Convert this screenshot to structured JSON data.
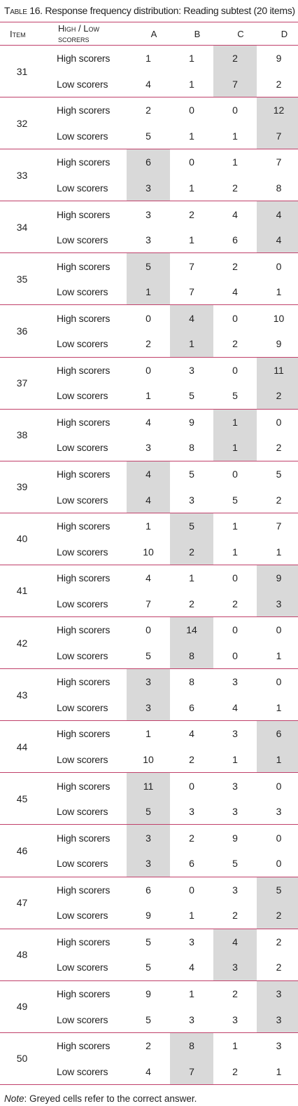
{
  "caption": {
    "prefix": "Table 16.",
    "text": "Response frequency distribution: Reading subtest (20 items)"
  },
  "header": {
    "item": "Item",
    "scorers": "High / Low scorers",
    "a": "A",
    "b": "B",
    "c": "C",
    "d": "D"
  },
  "labels": {
    "high": "High scorers",
    "low": "Low scorers"
  },
  "items": [
    {
      "item": "31",
      "correct": "C",
      "high": [
        "1",
        "1",
        "2",
        "9"
      ],
      "low": [
        "4",
        "1",
        "7",
        "2"
      ]
    },
    {
      "item": "32",
      "correct": "D",
      "high": [
        "2",
        "0",
        "0",
        "12"
      ],
      "low": [
        "5",
        "1",
        "1",
        "7"
      ]
    },
    {
      "item": "33",
      "correct": "A",
      "high": [
        "6",
        "0",
        "1",
        "7"
      ],
      "low": [
        "3",
        "1",
        "2",
        "8"
      ]
    },
    {
      "item": "34",
      "correct": "D",
      "high": [
        "3",
        "2",
        "4",
        "4"
      ],
      "low": [
        "3",
        "1",
        "6",
        "4"
      ]
    },
    {
      "item": "35",
      "correct": "A",
      "high": [
        "5",
        "7",
        "2",
        "0"
      ],
      "low": [
        "1",
        "7",
        "4",
        "1"
      ]
    },
    {
      "item": "36",
      "correct": "B",
      "high": [
        "0",
        "4",
        "0",
        "10"
      ],
      "low": [
        "2",
        "1",
        "2",
        "9"
      ]
    },
    {
      "item": "37",
      "correct": "D",
      "high": [
        "0",
        "3",
        "0",
        "11"
      ],
      "low": [
        "1",
        "5",
        "5",
        "2"
      ]
    },
    {
      "item": "38",
      "correct": "C",
      "high": [
        "4",
        "9",
        "1",
        "0"
      ],
      "low": [
        "3",
        "8",
        "1",
        "2"
      ]
    },
    {
      "item": "39",
      "correct": "A",
      "high": [
        "4",
        "5",
        "0",
        "5"
      ],
      "low": [
        "4",
        "3",
        "5",
        "2"
      ]
    },
    {
      "item": "40",
      "correct": "B",
      "high": [
        "1",
        "5",
        "1",
        "7"
      ],
      "low": [
        "10",
        "2",
        "1",
        "1"
      ]
    },
    {
      "item": "41",
      "correct": "D",
      "high": [
        "4",
        "1",
        "0",
        "9"
      ],
      "low": [
        "7",
        "2",
        "2",
        "3"
      ]
    },
    {
      "item": "42",
      "correct": "B",
      "high": [
        "0",
        "14",
        "0",
        "0"
      ],
      "low": [
        "5",
        "8",
        "0",
        "1"
      ]
    },
    {
      "item": "43",
      "correct": "A",
      "high": [
        "3",
        "8",
        "3",
        "0"
      ],
      "low": [
        "3",
        "6",
        "4",
        "1"
      ]
    },
    {
      "item": "44",
      "correct": "D",
      "high": [
        "1",
        "4",
        "3",
        "6"
      ],
      "low": [
        "10",
        "2",
        "1",
        "1"
      ]
    },
    {
      "item": "45",
      "correct": "A",
      "high": [
        "11",
        "0",
        "3",
        "0"
      ],
      "low": [
        "5",
        "3",
        "3",
        "3"
      ]
    },
    {
      "item": "46",
      "correct": "A",
      "high": [
        "3",
        "2",
        "9",
        "0"
      ],
      "low": [
        "3",
        "6",
        "5",
        "0"
      ]
    },
    {
      "item": "47",
      "correct": "D",
      "high": [
        "6",
        "0",
        "3",
        "5"
      ],
      "low": [
        "9",
        "1",
        "2",
        "2"
      ]
    },
    {
      "item": "48",
      "correct": "C",
      "high": [
        "5",
        "3",
        "4",
        "2"
      ],
      "low": [
        "5",
        "4",
        "3",
        "2"
      ]
    },
    {
      "item": "49",
      "correct": "D",
      "high": [
        "9",
        "1",
        "2",
        "3"
      ],
      "low": [
        "5",
        "3",
        "3",
        "3"
      ]
    },
    {
      "item": "50",
      "correct": "B",
      "high": [
        "2",
        "8",
        "1",
        "3"
      ],
      "low": [
        "4",
        "7",
        "2",
        "1"
      ]
    }
  ],
  "note": {
    "label": "Note",
    "text": ": Greyed cells refer to the correct answer."
  }
}
